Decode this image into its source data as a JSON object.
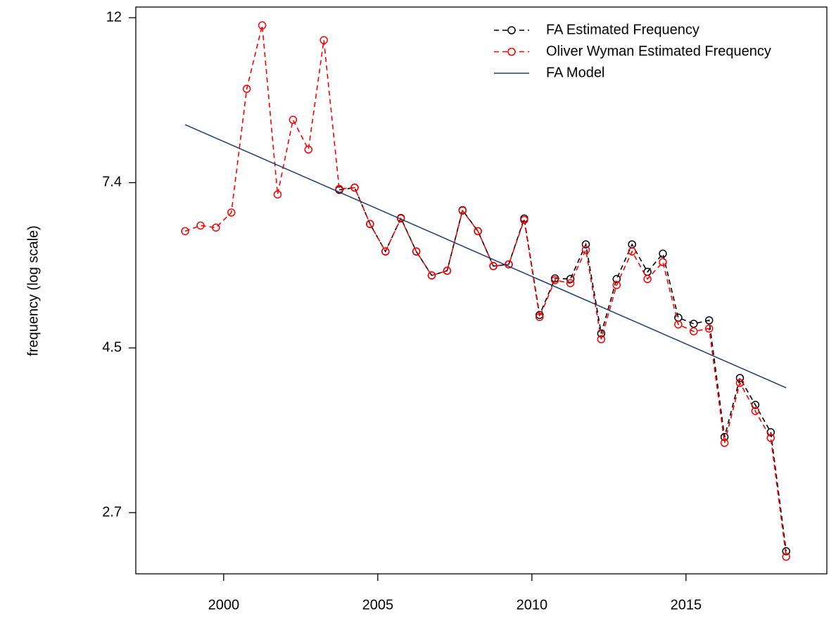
{
  "chart_data": {
    "type": "line",
    "y_label": "frequency (log scale)",
    "y_log": true,
    "xlim": [
      1997.15,
      2019.57
    ],
    "xticks": [
      2000,
      2005,
      2010,
      2015
    ],
    "ylim": [
      2.26,
      12.58
    ],
    "yticks": [
      {
        "value": 12.18,
        "label": "12"
      },
      {
        "value": 7.39,
        "label": "7.4"
      },
      {
        "value": 4.48,
        "label": "4.5"
      },
      {
        "value": 2.72,
        "label": "2.7"
      }
    ],
    "legend": "top-right",
    "x": [
      1998.75,
      1999.25,
      1999.75,
      2000.25,
      2000.75,
      2001.25,
      2001.75,
      2002.25,
      2002.75,
      2003.25,
      2003.75,
      2004.25,
      2004.75,
      2005.25,
      2005.75,
      2006.25,
      2006.75,
      2007.25,
      2007.75,
      2008.25,
      2008.75,
      2009.25,
      2009.75,
      2010.25,
      2010.75,
      2011.25,
      2011.75,
      2012.25,
      2012.75,
      2013.25,
      2013.75,
      2014.25,
      2014.75,
      2015.25,
      2015.75,
      2016.25,
      2016.75,
      2017.25,
      2017.75,
      2018.25
    ],
    "series": [
      {
        "name": "FA Estimated Frequency",
        "color": "#000000",
        "style": "dashed-points",
        "values": [
          null,
          null,
          null,
          null,
          null,
          null,
          null,
          null,
          null,
          null,
          7.23,
          7.28,
          6.52,
          6.0,
          6.64,
          6.0,
          5.58,
          5.66,
          6.8,
          6.38,
          5.74,
          5.77,
          6.63,
          4.95,
          5.53,
          5.52,
          6.13,
          4.68,
          5.52,
          6.13,
          5.64,
          5.96,
          4.91,
          4.82,
          4.87,
          3.42,
          4.09,
          3.77,
          3.47,
          2.42
        ]
      },
      {
        "name": "Oliver Wyman Estimated Frequency",
        "color": "#ff0000",
        "style": "dashed-points",
        "values": [
          6.38,
          6.49,
          6.45,
          6.75,
          9.82,
          11.9,
          7.13,
          8.94,
          8.17,
          11.38,
          7.25,
          7.28,
          6.52,
          6.0,
          6.63,
          6.0,
          5.58,
          5.66,
          6.79,
          6.38,
          5.74,
          5.77,
          6.6,
          4.92,
          5.5,
          5.45,
          6.03,
          4.6,
          5.42,
          6.0,
          5.52,
          5.81,
          4.81,
          4.71,
          4.75,
          3.36,
          4.03,
          3.7,
          3.41,
          2.38
        ]
      },
      {
        "name": "FA Model",
        "color": "#1f3a7a",
        "style": "solid",
        "x": [
          1998.75,
          2018.25
        ],
        "values": [
          8.81,
          3.97
        ]
      }
    ]
  }
}
